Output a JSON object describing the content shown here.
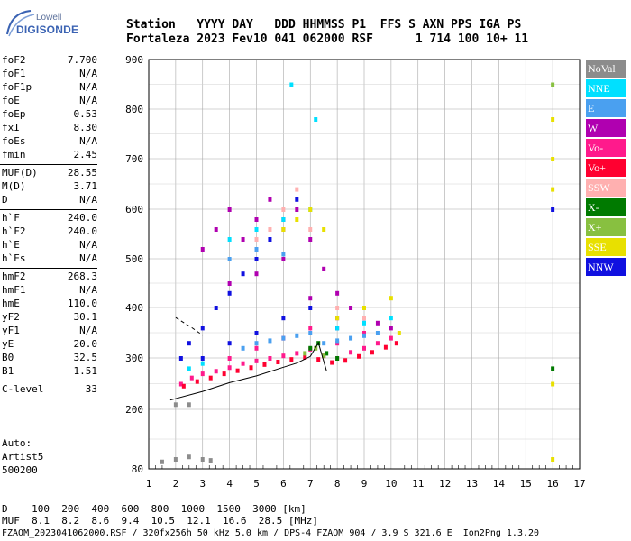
{
  "logo": {
    "line1": "Lowell",
    "line2": "DIGISONDE"
  },
  "header": {
    "line1": "Station   YYYY DAY   DDD HHMMSS P1  FFS S AXN PPS IGA PS",
    "line2": "Fortaleza 2023 Fev10 041 062000 RSF      1 714 100 10+ 11"
  },
  "params": [
    {
      "label": "foF2",
      "value": "7.700"
    },
    {
      "label": "foF1",
      "value": "N/A"
    },
    {
      "label": "foF1p",
      "value": "N/A"
    },
    {
      "label": "foE",
      "value": "N/A"
    },
    {
      "label": "foEp",
      "value": "0.53"
    },
    {
      "label": "fxI",
      "value": "8.30"
    },
    {
      "label": "foEs",
      "value": "N/A"
    },
    {
      "label": "fmin",
      "value": "2.45"
    },
    {
      "label": "MUF(D)",
      "value": "28.55"
    },
    {
      "label": "M(D)",
      "value": "3.71"
    },
    {
      "label": "D",
      "value": "N/A"
    },
    {
      "label": "h`F",
      "value": "240.0"
    },
    {
      "label": "h`F2",
      "value": "240.0"
    },
    {
      "label": "h`E",
      "value": "N/A"
    },
    {
      "label": "h`Es",
      "value": "N/A"
    },
    {
      "label": "hmF2",
      "value": "268.3"
    },
    {
      "label": "hmF1",
      "value": "N/A"
    },
    {
      "label": "hmE",
      "value": "110.0"
    },
    {
      "label": "yF2",
      "value": "30.1"
    },
    {
      "label": "yF1",
      "value": "N/A"
    },
    {
      "label": "yE",
      "value": "20.0"
    },
    {
      "label": "B0",
      "value": "32.5"
    },
    {
      "label": "B1",
      "value": "1.51"
    },
    {
      "label": "C-level",
      "value": "33"
    }
  ],
  "auto": {
    "line1": "Auto:",
    "line2": "Artist5",
    "line3": "500200"
  },
  "legend": [
    {
      "name": "NoVal",
      "color": "#8c8c8c"
    },
    {
      "name": "NNE",
      "color": "#00e0ff"
    },
    {
      "name": "E",
      "color": "#4aa0f0"
    },
    {
      "name": "W",
      "color": "#b000b0"
    },
    {
      "name": "Vo-",
      "color": "#ff1a8c"
    },
    {
      "name": "Vo+",
      "color": "#ff0030"
    },
    {
      "name": "SSW",
      "color": "#ffb0b0"
    },
    {
      "name": "X-",
      "color": "#007a00"
    },
    {
      "name": "X+",
      "color": "#88c040"
    },
    {
      "name": "SSE",
      "color": "#e8e000"
    },
    {
      "name": "NNW",
      "color": "#1010e0"
    }
  ],
  "chart_data": {
    "type": "scatter",
    "title": "",
    "xlabel": "",
    "ylabel": "",
    "xlim": [
      1,
      17
    ],
    "ylim": [
      80,
      900
    ],
    "x_ticks": [
      1,
      2,
      3,
      4,
      5,
      6,
      7,
      8,
      9,
      10,
      11,
      12,
      13,
      14,
      15,
      16,
      17
    ],
    "y_ticks": [
      80,
      200,
      300,
      400,
      500,
      600,
      700,
      800,
      900
    ],
    "grid": true,
    "legend_position": "right",
    "series": [
      {
        "name": "Vo-",
        "points": [
          [
            2.2,
            250
          ],
          [
            2.6,
            262
          ],
          [
            3,
            270
          ],
          [
            3.5,
            275
          ],
          [
            4,
            282
          ],
          [
            4.5,
            290
          ],
          [
            5,
            295
          ],
          [
            5.5,
            300
          ],
          [
            6,
            305
          ],
          [
            6.5,
            310
          ],
          [
            7,
            318
          ],
          [
            7.5,
            305
          ],
          [
            8,
            300
          ],
          [
            8.5,
            312
          ],
          [
            9,
            320
          ],
          [
            9.5,
            330
          ],
          [
            10,
            340
          ],
          [
            4,
            300
          ],
          [
            5,
            320
          ],
          [
            6,
            340
          ],
          [
            7,
            360
          ],
          [
            8,
            330
          ],
          [
            9,
            350
          ]
        ]
      },
      {
        "name": "Vo+",
        "points": [
          [
            2.3,
            246
          ],
          [
            2.8,
            255
          ],
          [
            3.3,
            262
          ],
          [
            3.8,
            270
          ],
          [
            4.3,
            276
          ],
          [
            4.8,
            282
          ],
          [
            5.3,
            288
          ],
          [
            5.8,
            293
          ],
          [
            6.3,
            298
          ],
          [
            6.8,
            302
          ],
          [
            7.3,
            298
          ],
          [
            7.8,
            292
          ],
          [
            8.3,
            296
          ],
          [
            8.8,
            304
          ],
          [
            9.3,
            312
          ],
          [
            9.8,
            322
          ],
          [
            10.2,
            330
          ]
        ]
      },
      {
        "name": "W",
        "points": [
          [
            3,
            520
          ],
          [
            3.5,
            560
          ],
          [
            4,
            600
          ],
          [
            4.5,
            540
          ],
          [
            5,
            580
          ],
          [
            5.5,
            620
          ],
          [
            6,
            560
          ],
          [
            6.5,
            600
          ],
          [
            7,
            540
          ],
          [
            7.5,
            480
          ],
          [
            8,
            430
          ],
          [
            8.5,
            400
          ],
          [
            9,
            380
          ],
          [
            9.5,
            370
          ],
          [
            10,
            360
          ],
          [
            4,
            450
          ],
          [
            5,
            470
          ],
          [
            6,
            500
          ],
          [
            7,
            420
          ],
          [
            8,
            380
          ]
        ]
      },
      {
        "name": "NNW",
        "points": [
          [
            2.2,
            300
          ],
          [
            2.5,
            330
          ],
          [
            3,
            360
          ],
          [
            3.5,
            400
          ],
          [
            4,
            430
          ],
          [
            4.5,
            470
          ],
          [
            5,
            500
          ],
          [
            5.5,
            540
          ],
          [
            6,
            580
          ],
          [
            6.5,
            620
          ],
          [
            3,
            300
          ],
          [
            4,
            330
          ],
          [
            5,
            350
          ],
          [
            6,
            380
          ],
          [
            7,
            400
          ],
          [
            8,
            360
          ],
          [
            16,
            600
          ]
        ]
      },
      {
        "name": "E",
        "points": [
          [
            4.5,
            320
          ],
          [
            5,
            330
          ],
          [
            5.5,
            335
          ],
          [
            6,
            340
          ],
          [
            6.5,
            345
          ],
          [
            7,
            350
          ],
          [
            7.5,
            330
          ],
          [
            8,
            335
          ],
          [
            8.5,
            340
          ],
          [
            9,
            345
          ],
          [
            9.5,
            350
          ],
          [
            4,
            500
          ],
          [
            5,
            520
          ],
          [
            6,
            510
          ]
        ]
      },
      {
        "name": "NNE",
        "points": [
          [
            2.5,
            280
          ],
          [
            3,
            290
          ],
          [
            4,
            540
          ],
          [
            5,
            560
          ],
          [
            6,
            580
          ],
          [
            7,
            600
          ],
          [
            8,
            360
          ],
          [
            9,
            370
          ],
          [
            10,
            380
          ],
          [
            6.3,
            850
          ],
          [
            7.2,
            780
          ]
        ]
      },
      {
        "name": "SSE",
        "points": [
          [
            6,
            560
          ],
          [
            6.5,
            580
          ],
          [
            7,
            600
          ],
          [
            7.5,
            560
          ],
          [
            8,
            380
          ],
          [
            9,
            400
          ],
          [
            10,
            420
          ],
          [
            10.3,
            350
          ],
          [
            16,
            780
          ],
          [
            16,
            700
          ],
          [
            16,
            640
          ],
          [
            16,
            250
          ],
          [
            16,
            100
          ]
        ]
      },
      {
        "name": "SSW",
        "points": [
          [
            5,
            540
          ],
          [
            5.5,
            560
          ],
          [
            6,
            600
          ],
          [
            6.5,
            640
          ],
          [
            7,
            560
          ],
          [
            8,
            400
          ],
          [
            9,
            380
          ]
        ]
      },
      {
        "name": "X-",
        "points": [
          [
            7,
            320
          ],
          [
            7.3,
            330
          ],
          [
            7.6,
            310
          ],
          [
            8,
            300
          ],
          [
            16,
            280
          ]
        ]
      },
      {
        "name": "X+",
        "points": [
          [
            6.8,
            310
          ],
          [
            7.2,
            320
          ],
          [
            7.5,
            305
          ],
          [
            16,
            850
          ]
        ]
      },
      {
        "name": "NoVal",
        "points": [
          [
            2,
            210
          ],
          [
            2.5,
            210
          ],
          [
            1.5,
            95
          ],
          [
            2,
            100
          ],
          [
            2.5,
            105
          ],
          [
            3,
            100
          ],
          [
            3.3,
            98
          ]
        ]
      }
    ],
    "traces": [
      {
        "name": "O-trace",
        "points": [
          [
            1.8,
            218
          ],
          [
            3,
            235
          ],
          [
            4,
            252
          ],
          [
            5,
            265
          ],
          [
            6,
            282
          ],
          [
            6.5,
            290
          ],
          [
            7,
            303
          ],
          [
            7.3,
            330
          ],
          [
            7.6,
            275
          ]
        ]
      },
      {
        "name": "profile",
        "points": [
          [
            2,
            380
          ],
          [
            2.6,
            360
          ],
          [
            3,
            345
          ]
        ]
      }
    ]
  },
  "dmuf": {
    "dline": "D    100  200  400  600  800  1000  1500  3000 [km]",
    "mufline": "MUF  8.1  8.2  8.6  9.4  10.5  12.1  16.6  28.5 [MHz]"
  },
  "footer": "FZAOM_2023041062000.RSF / 320fx256h 50 kHz 5.0 km / DPS-4 FZAOM 904 / 3.9 S 321.6 E  Ion2Png 1.3.20"
}
